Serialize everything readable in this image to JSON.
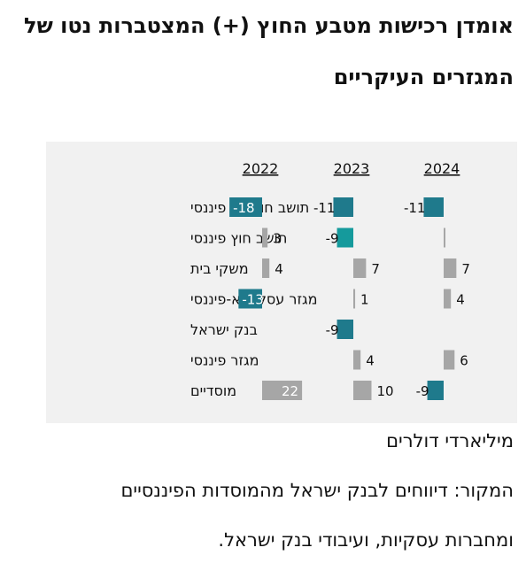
{
  "title_line1": "אומדן רכישות מטבע החוץ (+) המצטברות נטו של",
  "title_line2": "המגזרים העיקריים",
  "unit": "מיליארדי דולרים",
  "source_line1": "המקור: דיווחים לבנק ישראל מהמוסדות הפיננסיים",
  "source_line2": "ומחברות עסקיות, ועיבודי בנק ישראל.",
  "colors": {
    "negative": "#1f7a8c",
    "negative_alt": "#159a9c",
    "positive": "#a6a6a6",
    "panel": "#f1f1f1"
  },
  "chart_data": {
    "type": "bar",
    "orientation": "horizontal",
    "categories": [
      "תושב חוץ לא פיננסי",
      "תושב חוץ פיננסי",
      "משקי בית",
      "מגזר עסקי לא-פיננסי",
      "בנק ישראל",
      "מגזר פיננסי",
      "מוסדיים"
    ],
    "series": [
      {
        "name": "2022",
        "values": [
          -18,
          3,
          4,
          -13,
          null,
          null,
          22
        ]
      },
      {
        "name": "2023",
        "values": [
          -11,
          -9,
          7,
          1,
          -9,
          4,
          10
        ]
      },
      {
        "name": "2024",
        "values": [
          -11,
          0,
          7,
          4,
          null,
          6,
          -9
        ]
      }
    ],
    "data_labels": [
      [
        "-18",
        "3",
        "4",
        "-13",
        "",
        "",
        "22"
      ],
      [
        "-11",
        "-9",
        "7",
        "1",
        "-9",
        "4",
        "10"
      ],
      [
        "-11",
        "",
        "7",
        "4",
        "",
        "6",
        "-9"
      ]
    ],
    "xlabel": "",
    "ylabel": "",
    "grid": false,
    "legend": "none"
  }
}
